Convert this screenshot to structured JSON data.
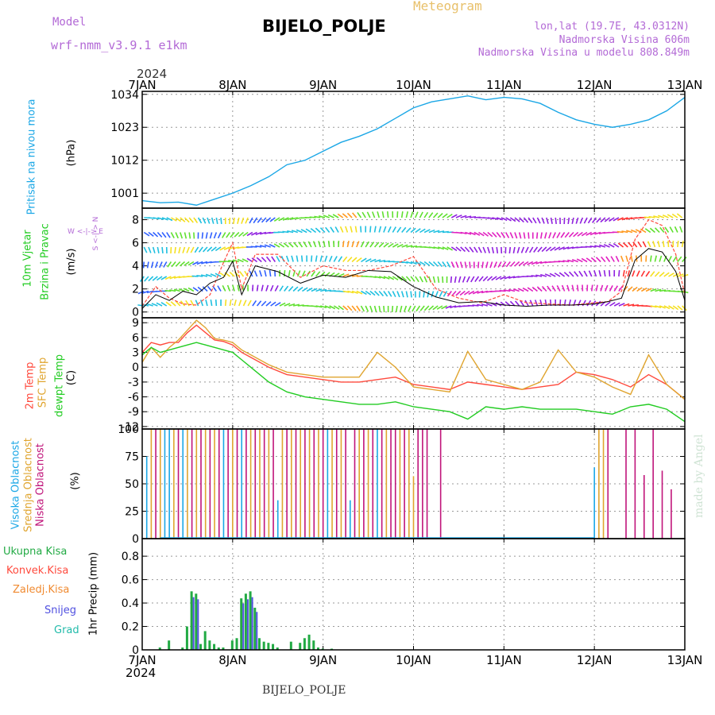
{
  "header": {
    "model_label": "Model",
    "model_name": "wrf-nmm_v3.9.1 e1km",
    "station": "BIJELO_POLJE",
    "meteogram": "Meteogram",
    "lonlat": "lon,lat (19.7E, 43.0312N)",
    "altitude": "Nadmorska Visina 606m",
    "altitude_model": "Nadmorska Visina u modelu 808.849m",
    "bottom_station": "BIJELO_POLJE",
    "made_by": "made by Angel"
  },
  "time_axis": {
    "year_top": "2024",
    "year_bottom": "2024",
    "ticks": [
      "7JAN",
      "8JAN",
      "9JAN",
      "10JAN",
      "11JAN",
      "12JAN",
      "13JAN"
    ],
    "tick_days": [
      0,
      1,
      2,
      3,
      4,
      5,
      6
    ]
  },
  "panel_labels": {
    "pressure_name": "Pritisak na nivou mora",
    "pressure_unit": "(hPa)",
    "wind_name1": "10m Vjetar",
    "wind_name2": "Brzina i Pravac",
    "wind_unit": "(m/s)",
    "compass": "W <-|-> E",
    "compass2": "S <-|-> N",
    "temp_2m": "2m Temp",
    "temp_sfc": "SFC Temp",
    "temp_dew": "dewpt Temp",
    "temp_unit": "(C)",
    "cloud_high": "Visoka Oblacnost",
    "cloud_mid": "Srednja Oblacnost",
    "cloud_low": "Niska Oblacnost",
    "cloud_unit": "(%)",
    "precip_total": "Ukupna Kisa",
    "precip_conv": "Konvek.Kisa",
    "precip_frozen": "Zaledj.Kisa",
    "precip_snow": "Snijeg",
    "precip_hail": "Grad",
    "precip_unit": "1hr Precip (mm)"
  },
  "colors": {
    "pressure": "#1ba7e6",
    "wind_speed": "#000000",
    "wind_gust": "#ff4a3d",
    "temp_2m": "#ff4a3d",
    "temp_sfc": "#e0a530",
    "temp_dew": "#22cc22",
    "cloud_high": "#1ba7e6",
    "cloud_mid": "#e0a530",
    "cloud_low": "#c0147a",
    "precip_total": "#22aa44",
    "precip_conv": "#ff4a3d",
    "precip_frozen": "#f08a30",
    "precip_snow": "#5050e0",
    "precip_hail": "#22bbaa",
    "label_purple": "#b36ad6"
  },
  "chart_data": [
    {
      "type": "line",
      "panel": "pressure",
      "ylabel": "Pritisak na nivou mora (hPa)",
      "yticks": [
        1001,
        1012,
        1023,
        1034
      ],
      "ylim": [
        996,
        1035
      ],
      "grid": true,
      "x_days": [
        0,
        0.2,
        0.4,
        0.6,
        0.8,
        1,
        1.2,
        1.4,
        1.6,
        1.8,
        2,
        2.2,
        2.4,
        2.6,
        2.8,
        3,
        3.2,
        3.4,
        3.6,
        3.8,
        4,
        4.2,
        4.4,
        4.6,
        4.8,
        5,
        5.2,
        5.4,
        5.6,
        5.8,
        6
      ],
      "series": [
        {
          "values": [
            998.5,
            997.8,
            998,
            997,
            999,
            1001,
            1003.5,
            1006.5,
            1010.5,
            1012,
            1015,
            1018,
            1020,
            1022.5,
            1026,
            1029.5,
            1031.5,
            1032.5,
            1033.5,
            1032.2,
            1033,
            1032.5,
            1031,
            1028,
            1025.5,
            1024,
            1023,
            1024,
            1025.5,
            1028.5,
            1033
          ]
        }
      ]
    },
    {
      "type": "line",
      "panel": "wind",
      "ylabel": "10m Vjetar Brzina i Pravac (m/s)",
      "yticks": [
        0,
        2,
        4,
        6,
        8
      ],
      "ylim": [
        -0.5,
        9
      ],
      "grid": true,
      "x_days": [
        0,
        0.15,
        0.3,
        0.45,
        0.6,
        0.75,
        0.9,
        1,
        1.1,
        1.25,
        1.5,
        1.75,
        2,
        2.25,
        2.5,
        2.75,
        3,
        3.25,
        3.5,
        3.75,
        4,
        4.25,
        4.5,
        4.75,
        5,
        5.15,
        5.3,
        5.45,
        5.6,
        5.75,
        5.9,
        6
      ],
      "series": [
        {
          "values": [
            0.3,
            1.5,
            1,
            1.8,
            1.5,
            2.5,
            3,
            4.4,
            1.5,
            4,
            3.5,
            2.5,
            3.2,
            3,
            3.6,
            3.5,
            2.2,
            1.3,
            0.8,
            0.9,
            0.6,
            0.5,
            0.6,
            0.6,
            0.7,
            0.9,
            1.2,
            4.5,
            5.5,
            5.2,
            3.5,
            1
          ]
        },
        {
          "values": [
            0.5,
            2.2,
            1.2,
            0.7,
            0.6,
            1.5,
            4.3,
            6,
            2,
            5,
            5,
            3,
            4,
            3.6,
            3.6,
            4,
            4.8,
            2,
            1.2,
            0.8,
            1.5,
            0.8,
            0.7,
            0.6,
            0.8,
            0.9,
            1.8,
            6.3,
            8,
            7.5,
            5,
            1.5
          ]
        }
      ]
    },
    {
      "type": "line",
      "panel": "temperature",
      "ylabel": "Temp (C)",
      "yticks": [
        -12,
        -9,
        -6,
        -3,
        0,
        3,
        6,
        9
      ],
      "ylim": [
        -12.5,
        10
      ],
      "grid": true,
      "series_names": [
        "2m Temp",
        "SFC Temp",
        "dewpt Temp"
      ],
      "x_days": [
        0,
        0.1,
        0.2,
        0.3,
        0.4,
        0.5,
        0.6,
        0.7,
        0.8,
        0.9,
        1,
        1.1,
        1.2,
        1.4,
        1.6,
        1.8,
        2,
        2.2,
        2.4,
        2.6,
        2.8,
        3,
        3.2,
        3.4,
        3.6,
        3.8,
        4,
        4.2,
        4.4,
        4.6,
        4.8,
        5,
        5.2,
        5.4,
        5.6,
        5.8,
        6
      ],
      "series": [
        {
          "values": [
            3,
            5,
            4.5,
            5,
            5,
            7,
            8.5,
            7,
            5.5,
            5.2,
            4.5,
            3,
            2,
            0,
            -1.5,
            -2,
            -2.5,
            -3,
            -3,
            -2.5,
            -2,
            -3.5,
            -4,
            -4.5,
            -3,
            -3.5,
            -4,
            -4.5,
            -4,
            -3.5,
            -1,
            -1.5,
            -2.5,
            -4,
            -1.5,
            -3.5,
            -6.5
          ]
        },
        {
          "values": [
            1,
            4,
            2,
            4,
            5.5,
            7.5,
            9.5,
            8,
            5.8,
            5.5,
            5,
            3.5,
            2.5,
            0.5,
            -1,
            -1.5,
            -2,
            -2,
            -2,
            3,
            0,
            -4,
            -4.5,
            -5,
            3.2,
            -2.5,
            -3.5,
            -4.5,
            -3,
            3.5,
            -1,
            -2,
            -4,
            -5.5,
            2.5,
            -3.5,
            -6.5
          ]
        },
        {
          "values": [
            2.5,
            4,
            3,
            3.5,
            4,
            4.5,
            5,
            4.5,
            4,
            3.5,
            3,
            1.5,
            0,
            -3,
            -5,
            -6,
            -6.5,
            -7,
            -7.5,
            -7.5,
            -7,
            -8,
            -8.5,
            -9,
            -10.5,
            -8,
            -8.5,
            -8,
            -8.5,
            -8.5,
            -8.5,
            -9,
            -9.5,
            -8,
            -7.5,
            -8.5,
            -11
          ]
        }
      ]
    },
    {
      "type": "bar",
      "panel": "cloud",
      "ylabel": "Oblacnost (%)",
      "yticks": [
        0,
        25,
        50,
        75,
        100
      ],
      "ylim": [
        0,
        100
      ],
      "grid": true,
      "series_names": [
        "Visoka Oblacnost",
        "Srednja Oblacnost",
        "Niska Oblacnost"
      ],
      "bar_days_high": [
        0.05,
        0.25,
        0.3,
        0.45,
        0.9,
        1.1,
        1.5,
        2.05,
        2.3,
        2.6,
        5.0
      ],
      "bar_vals_high": [
        75,
        100,
        100,
        100,
        100,
        100,
        35,
        100,
        35,
        100,
        65
      ],
      "bar_days_mid": [
        0.1,
        0.2,
        0.35,
        0.5,
        0.6,
        0.7,
        0.8,
        1.0,
        1.2,
        1.3,
        1.4,
        1.55,
        1.65,
        1.75,
        1.85,
        1.95,
        2.1,
        2.2,
        2.4,
        2.5,
        2.7,
        2.85,
        2.95,
        3.0,
        5.05,
        5.1
      ],
      "bar_vals_mid": [
        100,
        100,
        100,
        100,
        100,
        100,
        100,
        100,
        100,
        100,
        100,
        100,
        100,
        100,
        100,
        100,
        100,
        100,
        100,
        100,
        100,
        100,
        100,
        57,
        100,
        100
      ],
      "bar_days_low": [
        0.15,
        0.4,
        0.55,
        0.65,
        0.75,
        0.85,
        0.95,
        1.05,
        1.15,
        1.25,
        1.35,
        1.45,
        1.6,
        1.7,
        1.8,
        1.9,
        2.0,
        2.15,
        2.25,
        2.35,
        2.45,
        2.55,
        2.65,
        2.75,
        2.8,
        2.9,
        3.05,
        3.1,
        3.15,
        3.3,
        5.15,
        5.35,
        5.45,
        5.55,
        5.65,
        5.75,
        5.85
      ],
      "bar_vals_low": [
        100,
        100,
        100,
        100,
        100,
        100,
        100,
        100,
        100,
        100,
        100,
        100,
        100,
        100,
        100,
        100,
        100,
        100,
        100,
        100,
        100,
        100,
        100,
        100,
        100,
        100,
        100,
        100,
        100,
        100,
        100,
        100,
        100,
        58,
        100,
        62,
        45
      ]
    },
    {
      "type": "bar",
      "panel": "precip",
      "ylabel": "1hr Precip (mm)",
      "yticks": [
        0,
        0.2,
        0.4,
        0.6,
        0.8
      ],
      "ylim": [
        0,
        0.95
      ],
      "grid": true,
      "series_names": [
        "Ukupna Kisa",
        "Konvek.Kisa",
        "Zaledj.Kisa",
        "Snijeg",
        "Grad"
      ],
      "bar_days": [
        0.2,
        0.3,
        0.45,
        0.5,
        0.55,
        0.6,
        0.65,
        0.7,
        0.75,
        0.8,
        0.85,
        0.9,
        1.0,
        1.05,
        1.1,
        1.15,
        1.2,
        1.25,
        1.3,
        1.35,
        1.4,
        1.45,
        1.5,
        1.65,
        1.75,
        1.8,
        1.85,
        1.9,
        1.95,
        2.0,
        2.1
      ],
      "bar_vals": [
        0.02,
        0.08,
        0.02,
        0.2,
        0.5,
        0.48,
        0.05,
        0.16,
        0.08,
        0.05,
        0.02,
        0.02,
        0.08,
        0.1,
        0.44,
        0.48,
        0.5,
        0.36,
        0.1,
        0.07,
        0.06,
        0.05,
        0.02,
        0.07,
        0.06,
        0.1,
        0.13,
        0.08,
        0.02,
        0.01,
        0.01
      ]
    }
  ]
}
